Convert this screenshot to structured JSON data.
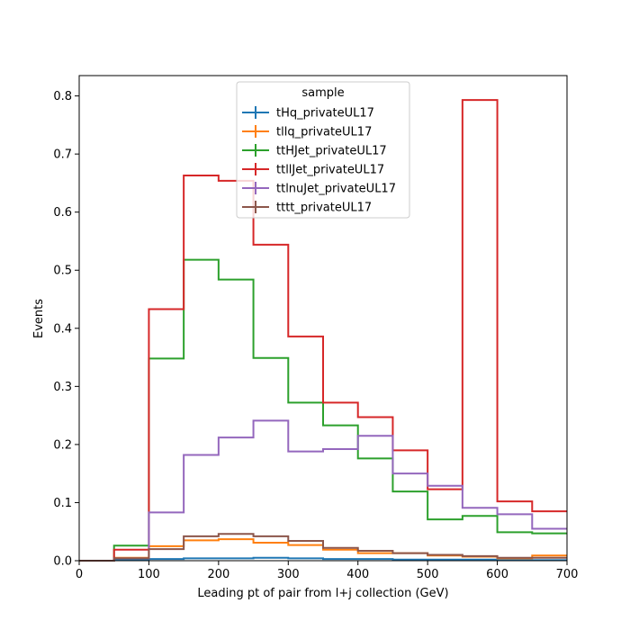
{
  "chart_data": {
    "type": "step-histogram",
    "xlabel": "Leading pt of pair from l+j collection (GeV)",
    "ylabel": "Events",
    "xlim": [
      0,
      700
    ],
    "ylim": [
      0,
      0.835
    ],
    "bin_edges": [
      0,
      50,
      100,
      150,
      200,
      250,
      300,
      350,
      400,
      450,
      500,
      550,
      600,
      650,
      700
    ],
    "x_ticks": [
      0,
      100,
      200,
      300,
      400,
      500,
      600,
      700
    ],
    "y_ticks": [
      0.0,
      0.1,
      0.2,
      0.3,
      0.4,
      0.5,
      0.6,
      0.7,
      0.8
    ],
    "x_tick_labels": [
      "0",
      "100",
      "200",
      "300",
      "400",
      "500",
      "600",
      "700"
    ],
    "y_tick_labels": [
      "0.0",
      "0.1",
      "0.2",
      "0.3",
      "0.4",
      "0.5",
      "0.6",
      "0.7",
      "0.8"
    ],
    "grid": false,
    "legend": {
      "title": "sample",
      "placement": "upper-center"
    },
    "series": [
      {
        "name": "tHq_privateUL17",
        "color": "#1f77b4",
        "values": [
          0.0,
          0.002,
          0.003,
          0.004,
          0.004,
          0.005,
          0.004,
          0.003,
          0.003,
          0.002,
          0.002,
          0.002,
          0.001,
          0.001
        ]
      },
      {
        "name": "tllq_privateUL17",
        "color": "#ff7f0e",
        "values": [
          0.0,
          0.005,
          0.025,
          0.035,
          0.037,
          0.031,
          0.027,
          0.019,
          0.013,
          0.013,
          0.009,
          0.007,
          0.004,
          0.009
        ]
      },
      {
        "name": "ttHJet_privateUL17",
        "color": "#2ca02c",
        "values": [
          0.0,
          0.026,
          0.348,
          0.518,
          0.484,
          0.349,
          0.272,
          0.233,
          0.176,
          0.119,
          0.071,
          0.077,
          0.049,
          0.047
        ]
      },
      {
        "name": "ttllJet_privateUL17",
        "color": "#d62728",
        "values": [
          0.0,
          0.019,
          0.433,
          0.663,
          0.654,
          0.544,
          0.386,
          0.272,
          0.247,
          0.19,
          0.123,
          0.793,
          0.102,
          0.085
        ]
      },
      {
        "name": "ttlnuJet_privateUL17",
        "color": "#9467bd",
        "values": [
          0.0,
          0.004,
          0.083,
          0.182,
          0.212,
          0.241,
          0.188,
          0.192,
          0.215,
          0.15,
          0.129,
          0.091,
          0.08,
          0.055
        ]
      },
      {
        "name": "tttt_privateUL17",
        "color": "#8c564b",
        "values": [
          0.0,
          0.004,
          0.02,
          0.042,
          0.046,
          0.042,
          0.034,
          0.022,
          0.017,
          0.013,
          0.01,
          0.008,
          0.005,
          0.005
        ]
      }
    ]
  }
}
